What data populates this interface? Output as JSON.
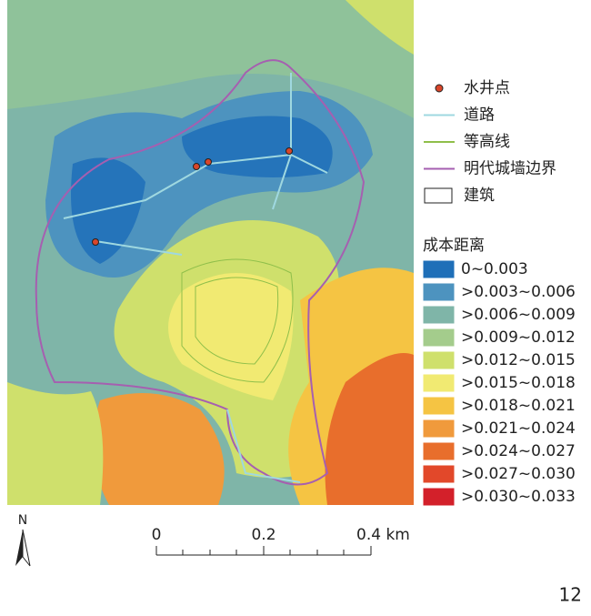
{
  "legend": {
    "items": [
      {
        "label": "水井点",
        "symbol": "point",
        "color": "#d9462a"
      },
      {
        "label": "道路",
        "symbol": "line",
        "color": "#9fd8e0"
      },
      {
        "label": "等高线",
        "symbol": "line",
        "color": "#8fbf4a"
      },
      {
        "label": "明代城墙边界",
        "symbol": "line",
        "color": "#a65fb0"
      },
      {
        "label": "建筑",
        "symbol": "box",
        "color": "#ffffff"
      }
    ],
    "cost_title": "成本距离",
    "cost_classes": [
      {
        "label": "0~0.003",
        "color": "#1f6fb8"
      },
      {
        "label": ">0.003~0.006",
        "color": "#4d93bf"
      },
      {
        "label": ">0.006~0.009",
        "color": "#7fb5a8"
      },
      {
        "label": ">0.009~0.012",
        "color": "#a4cc8c"
      },
      {
        "label": ">0.012~0.015",
        "color": "#cfe06c"
      },
      {
        "label": ">0.015~0.018",
        "color": "#f1ea72"
      },
      {
        "label": ">0.018~0.021",
        "color": "#f5c443"
      },
      {
        "label": ">0.021~0.024",
        "color": "#f09a3c"
      },
      {
        "label": ">0.024~0.027",
        "color": "#e86e2c"
      },
      {
        "label": ">0.027~0.030",
        "color": "#e2482a"
      },
      {
        "label": ">0.030~0.033",
        "color": "#d3202a"
      }
    ]
  },
  "north": "N",
  "scale_bar": {
    "labels": [
      "0",
      "0.2",
      "0.4 km"
    ]
  },
  "page_number": "12"
}
